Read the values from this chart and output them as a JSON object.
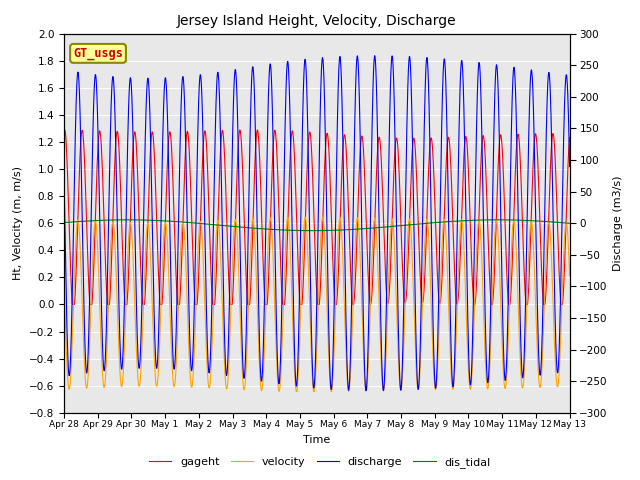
{
  "title": "Jersey Island Height, Velocity, Discharge",
  "xlabel": "Time",
  "ylabel_left": "Ht, Velocity (m, m/s)",
  "ylabel_right": "Discharge (m3/s)",
  "ylim_left": [
    -0.8,
    2.0
  ],
  "ylim_right": [
    -300,
    300
  ],
  "xtick_labels": [
    "Apr 28",
    "Apr 29",
    "Apr 30",
    "May 1",
    "May 2",
    "May 3",
    "May 4",
    "May 5",
    "May 6",
    "May 7",
    "May 8",
    "May 9",
    "May 10",
    "May 11",
    "May 12",
    "May 13"
  ],
  "legend_entries": [
    "gageht",
    "velocity",
    "discharge",
    "dis_tidal"
  ],
  "line_colors": [
    "red",
    "orange",
    "blue",
    "green"
  ],
  "gt_usgs_label": "GT_usgs",
  "gt_usgs_color": "#cc0000",
  "gt_usgs_bg": "#ffff99",
  "gt_usgs_border": "#888800",
  "background_color": "#e8e8e8",
  "tidal_period_hours": 12.42,
  "n_points": 5000,
  "duration_days": 15,
  "gageht_mean": 0.62,
  "gageht_amp": 0.65,
  "velocity_amp": 0.63,
  "discharge_amp": 250,
  "dis_tidal_mean": 0.585,
  "dis_tidal_amp": 0.04,
  "dis_tidal_period_days": 11.0
}
